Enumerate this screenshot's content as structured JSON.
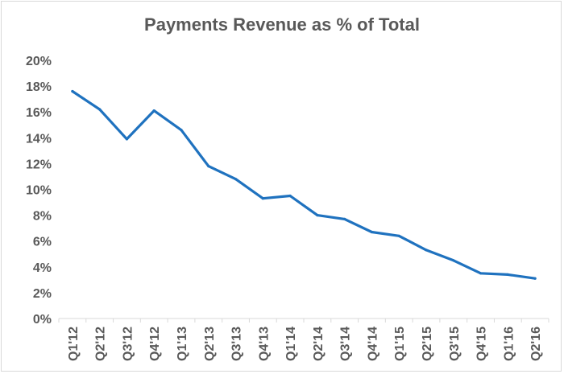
{
  "chart_data": {
    "type": "line",
    "title": "Payments Revenue as % of Total",
    "xlabel": "",
    "ylabel": "",
    "categories": [
      "Q1'12",
      "Q2'12",
      "Q3'12",
      "Q4'12",
      "Q1'13",
      "Q2'13",
      "Q3'13",
      "Q4'13",
      "Q1'14",
      "Q2'14",
      "Q3'14",
      "Q4'14",
      "Q1'15",
      "Q2'15",
      "Q3'15",
      "Q4'15",
      "Q1'16",
      "Q2'16"
    ],
    "series": [
      {
        "values": [
          17.6,
          16.2,
          13.9,
          16.1,
          14.6,
          11.8,
          10.8,
          9.3,
          9.5,
          8.0,
          7.7,
          6.7,
          6.4,
          5.3,
          4.5,
          3.5,
          3.4,
          3.1
        ],
        "color": "#1f72bf"
      }
    ],
    "ylim": [
      0,
      20
    ],
    "yticks": [
      "0%",
      "2%",
      "4%",
      "6%",
      "8%",
      "10%",
      "12%",
      "14%",
      "16%",
      "18%",
      "20%"
    ],
    "ytick_values": [
      0,
      2,
      4,
      6,
      8,
      10,
      12,
      14,
      16,
      18,
      20
    ],
    "grid": false,
    "legend": "none"
  }
}
